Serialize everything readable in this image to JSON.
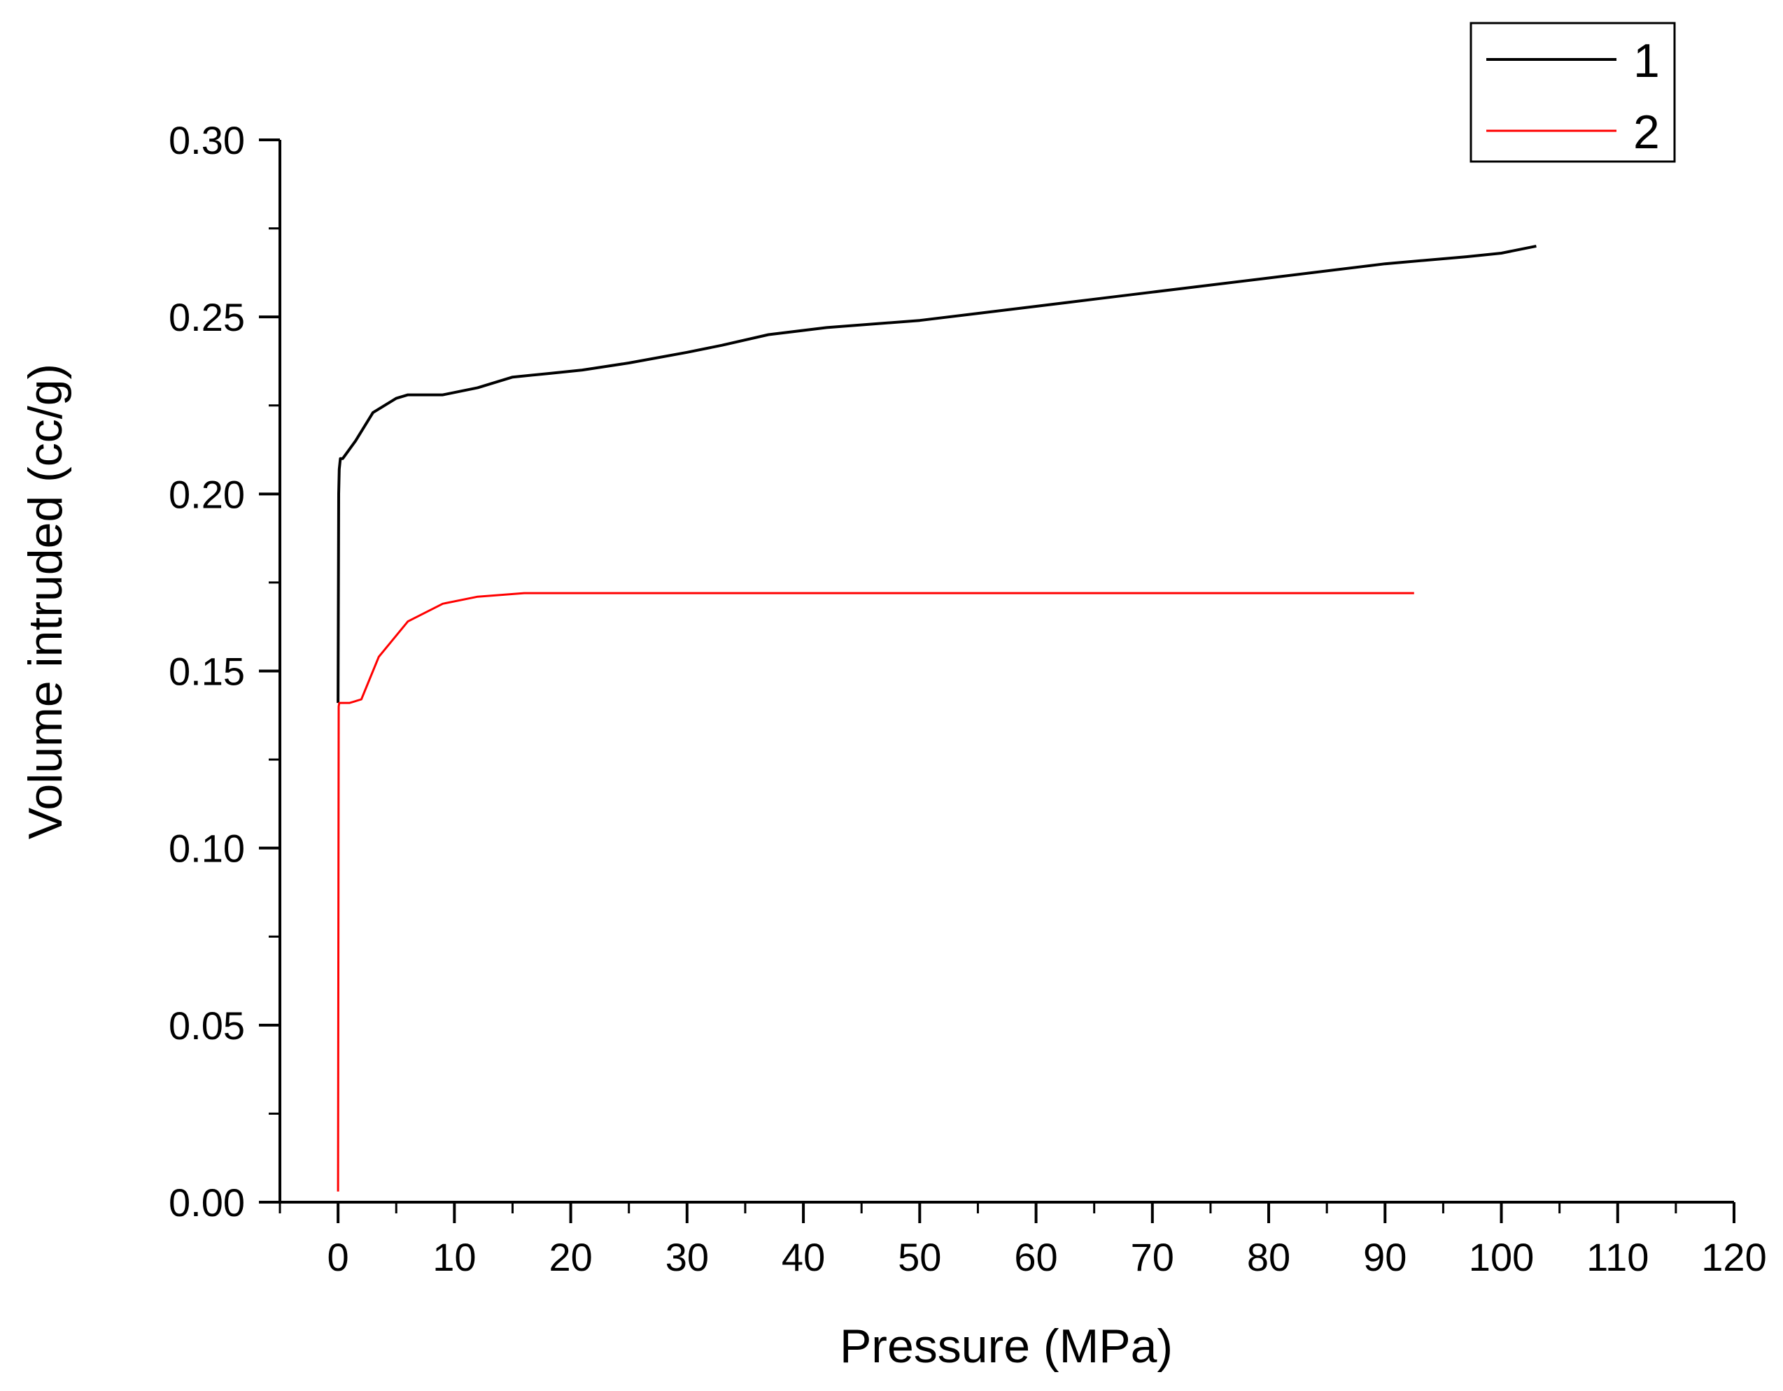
{
  "chart_data": {
    "type": "line",
    "title": "",
    "xlabel": "Pressure (MPa)",
    "ylabel": "Volume intruded (cc/g)",
    "xlim": [
      -5,
      120
    ],
    "ylim": [
      0,
      0.3
    ],
    "grid": false,
    "legend_position": "top-right",
    "x_ticks": [
      0,
      10,
      20,
      30,
      40,
      50,
      60,
      70,
      80,
      90,
      100,
      110,
      120
    ],
    "x_tick_labels": [
      "0",
      "10",
      "20",
      "30",
      "40",
      "50",
      "60",
      "70",
      "80",
      "90",
      "100",
      "110",
      "120"
    ],
    "y_ticks": [
      0,
      0.05,
      0.1,
      0.15,
      0.2,
      0.25,
      0.3
    ],
    "y_tick_labels": [
      "0.00",
      "0.05",
      "0.10",
      "0.15",
      "0.20",
      "0.25",
      "0.30"
    ],
    "series": [
      {
        "name": "1",
        "color": "#000000",
        "x": [
          0,
          0.05,
          0.1,
          0.2,
          0.4,
          1.5,
          3,
          5,
          6,
          9,
          12,
          15,
          18,
          21,
          25,
          30,
          33,
          37,
          42,
          50,
          55,
          60,
          65,
          70,
          80,
          90,
          97,
          100,
          103
        ],
        "y": [
          0.141,
          0.2,
          0.207,
          0.21,
          0.21,
          0.215,
          0.223,
          0.227,
          0.228,
          0.228,
          0.23,
          0.233,
          0.234,
          0.235,
          0.237,
          0.24,
          0.242,
          0.245,
          0.247,
          0.249,
          0.251,
          0.253,
          0.255,
          0.257,
          0.261,
          0.265,
          0.267,
          0.268,
          0.27
        ]
      },
      {
        "name": "2",
        "color": "#ff0000",
        "x": [
          0,
          0.05,
          0.1,
          1,
          2,
          3.5,
          6,
          9,
          12,
          16,
          20,
          40,
          60,
          80,
          92.5
        ],
        "y": [
          0.003,
          0.14,
          0.141,
          0.141,
          0.142,
          0.154,
          0.164,
          0.169,
          0.171,
          0.172,
          0.172,
          0.172,
          0.172,
          0.172,
          0.172
        ]
      }
    ]
  }
}
